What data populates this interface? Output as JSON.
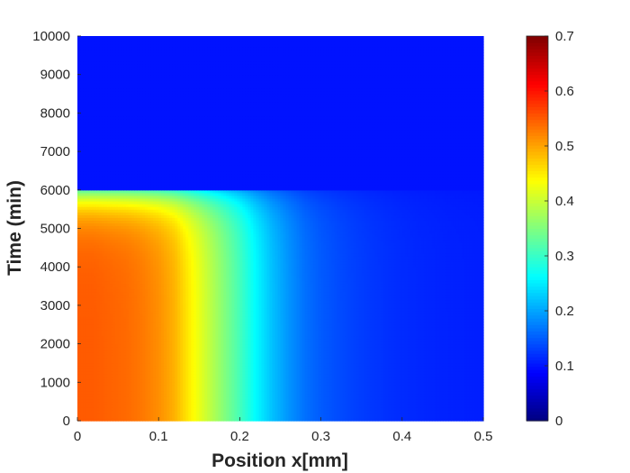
{
  "chart_data": {
    "type": "heatmap",
    "title": "",
    "xlabel": "Position x[mm]",
    "ylabel": "Time (min)",
    "xlim": [
      0,
      0.5
    ],
    "ylim": [
      0,
      10000
    ],
    "x_ticks": [
      0,
      0.1,
      0.2,
      0.3,
      0.4,
      0.5
    ],
    "x_tick_labels": [
      "0",
      "0.1",
      "0.2",
      "0.3",
      "0.4",
      "0.5"
    ],
    "y_ticks": [
      0,
      1000,
      2000,
      3000,
      4000,
      5000,
      6000,
      7000,
      8000,
      9000,
      10000
    ],
    "y_tick_labels": [
      "0",
      "1000",
      "2000",
      "3000",
      "4000",
      "5000",
      "6000",
      "7000",
      "8000",
      "9000",
      "10000"
    ],
    "colorbar": {
      "colormap": "jet",
      "clim": [
        0,
        0.7
      ],
      "ticks": [
        0,
        0.1,
        0.2,
        0.3,
        0.4,
        0.5,
        0.6,
        0.7
      ],
      "tick_labels": [
        "0",
        "0.1",
        "0.2",
        "0.3",
        "0.4",
        "0.5",
        "0.6",
        "0.7"
      ],
      "placement": "right"
    },
    "grid": false,
    "field": {
      "x": [
        0,
        0.02,
        0.04,
        0.06,
        0.08,
        0.1,
        0.12,
        0.14,
        0.16,
        0.18,
        0.2,
        0.22,
        0.24,
        0.26,
        0.28,
        0.3,
        0.32,
        0.34,
        0.36,
        0.38,
        0.4,
        0.42,
        0.44,
        0.46,
        0.48,
        0.5
      ],
      "profile_before_switch": [
        0.55,
        0.55,
        0.545,
        0.54,
        0.53,
        0.515,
        0.49,
        0.445,
        0.4,
        0.355,
        0.31,
        0.26,
        0.22,
        0.19,
        0.165,
        0.15,
        0.14,
        0.132,
        0.126,
        0.121,
        0.117,
        0.114,
        0.112,
        0.11,
        0.109,
        0.108
      ],
      "switch_time": 6000,
      "value_after_switch": 0.1
    }
  }
}
